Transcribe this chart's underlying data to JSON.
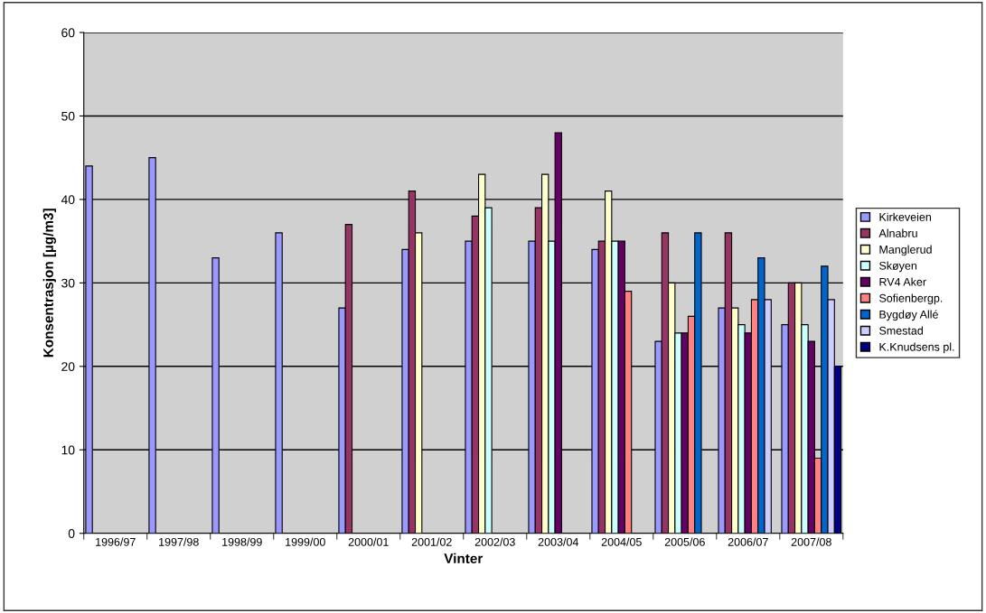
{
  "chart_data": {
    "type": "bar",
    "xlabel": "Vinter",
    "ylabel": "Konsentrasjon [µg/m3]",
    "categories": [
      "1996/97",
      "1997/98",
      "1998/99",
      "1999/00",
      "2000/01",
      "2001/02",
      "2002/03",
      "2003/04",
      "2004/05",
      "2005/06",
      "2006/07",
      "2007/08"
    ],
    "series": [
      {
        "name": "Kirkeveien",
        "color": "#9999ff",
        "values": [
          44,
          45,
          33,
          36,
          27,
          34,
          35,
          35,
          34,
          23,
          27,
          25
        ]
      },
      {
        "name": "Alnabru",
        "color": "#993366",
        "values": [
          null,
          null,
          null,
          null,
          37,
          41,
          38,
          39,
          35,
          36,
          36,
          30
        ]
      },
      {
        "name": "Manglerud",
        "color": "#ffffcc",
        "values": [
          null,
          null,
          null,
          null,
          null,
          36,
          43,
          43,
          41,
          30,
          27,
          30
        ]
      },
      {
        "name": "Skøyen",
        "color": "#ccffff",
        "values": [
          null,
          null,
          null,
          null,
          null,
          null,
          39,
          35,
          35,
          24,
          25,
          25
        ]
      },
      {
        "name": "RV4 Aker",
        "color": "#660066",
        "values": [
          null,
          null,
          null,
          null,
          null,
          null,
          null,
          48,
          35,
          24,
          24,
          23
        ]
      },
      {
        "name": "Sofienbergp.",
        "color": "#ff8080",
        "values": [
          null,
          null,
          null,
          null,
          null,
          null,
          null,
          null,
          29,
          26,
          28,
          9
        ]
      },
      {
        "name": "Bygdøy Allé",
        "color": "#0066cc",
        "values": [
          null,
          null,
          null,
          null,
          null,
          null,
          null,
          null,
          null,
          36,
          33,
          32
        ]
      },
      {
        "name": "Smestad",
        "color": "#ccccff",
        "values": [
          null,
          null,
          null,
          null,
          null,
          null,
          null,
          null,
          null,
          null,
          28,
          28
        ]
      },
      {
        "name": "K.Knudsens pl.",
        "color": "#000080",
        "values": [
          null,
          null,
          null,
          null,
          null,
          null,
          null,
          null,
          null,
          null,
          null,
          20
        ]
      }
    ],
    "ylim": [
      0,
      60
    ],
    "yticks": [
      0,
      10,
      20,
      30,
      40,
      50,
      60
    ],
    "grid": "y",
    "legend": "right"
  }
}
